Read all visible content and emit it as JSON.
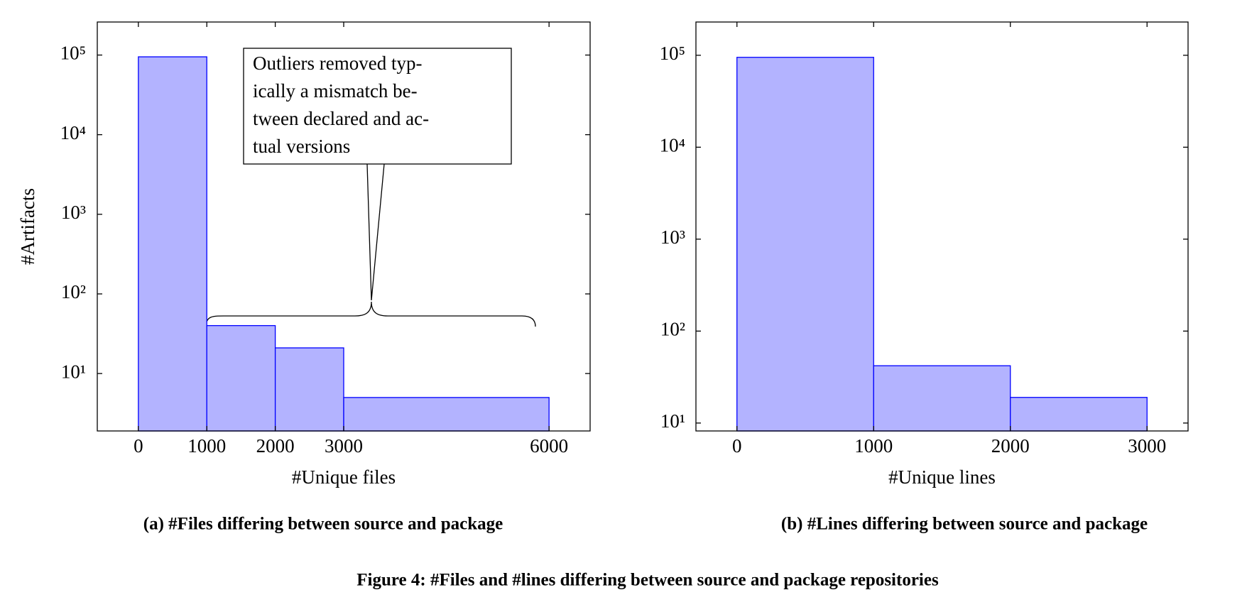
{
  "chart_data": [
    {
      "type": "histogram",
      "bins": [
        0,
        1000,
        2000,
        3000,
        6000
      ],
      "counts": [
        95000,
        40,
        21,
        5
      ],
      "xlim": [
        -600,
        6600
      ],
      "xticks": [
        0,
        1000,
        2000,
        3000,
        6000
      ],
      "ylim": [
        1.9,
        260000
      ],
      "log_y": true,
      "yticks": [
        {
          "value": 10,
          "label": "10¹"
        },
        {
          "value": 100,
          "label": "10²"
        },
        {
          "value": 1000,
          "label": "10³"
        },
        {
          "value": 10000,
          "label": "10⁴"
        },
        {
          "value": 100000,
          "label": "10⁵"
        }
      ],
      "x_label": "#Unique files",
      "y_label": "#Artifacts",
      "fill": "#b3b3ff",
      "edge": "#0000ff",
      "annotation": [
        "Outliers removed typ-",
        "ically a mismatch be-",
        "tween declared and ac-",
        "tual versions"
      ],
      "caption": "(a) #Files differing between source and package"
    },
    {
      "type": "histogram",
      "bins": [
        0,
        1000,
        2000,
        3000
      ],
      "counts": [
        95000,
        42,
        19
      ],
      "xlim": [
        -300,
        3300
      ],
      "xticks": [
        0,
        1000,
        2000,
        3000
      ],
      "ylim": [
        8.2,
        230000
      ],
      "log_y": true,
      "yticks": [
        {
          "value": 10,
          "label": "10¹"
        },
        {
          "value": 100,
          "label": "10²"
        },
        {
          "value": 1000,
          "label": "10³"
        },
        {
          "value": 10000,
          "label": "10⁴"
        },
        {
          "value": 100000,
          "label": "10⁵"
        }
      ],
      "x_label": "#Unique lines",
      "fill": "#b3b3ff",
      "edge": "#0000ff",
      "caption": "(b) #Lines differing between source and package"
    }
  ],
  "caption": "Figure 4: #Files and #lines differing between source and package repositories"
}
